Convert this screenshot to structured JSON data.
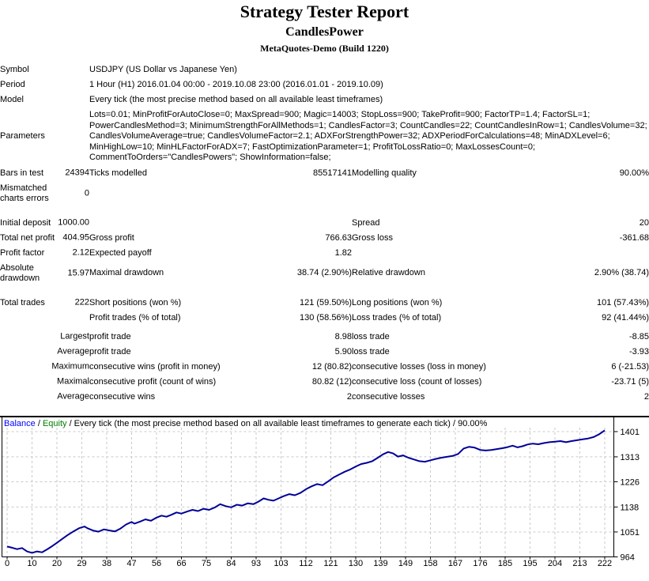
{
  "header": {
    "title": "Strategy Tester Report",
    "strategy": "CandlesPower",
    "server": "MetaQuotes-Demo (Build 1220)"
  },
  "info": {
    "symbol_label": "Symbol",
    "symbol": "USDJPY (US Dollar vs Japanese Yen)",
    "period_label": "Period",
    "period": "1 Hour (H1) 2016.01.04 00:00 - 2019.10.08 23:00 (2016.01.01 - 2019.10.09)",
    "model_label": "Model",
    "model": "Every tick (the most precise method based on all available least timeframes)",
    "parameters_label": "Parameters",
    "parameters": "Lots=0.01; MinProfitForAutoClose=0; MaxSpread=900; Magic=14003; StopLoss=900; TakeProfit=900; FactorTP=1.4; FactorSL=1; PowerCandlesMethod=3; MinimumStrengthForAllMethods=1; CandlesFactor=3; CountCandles=22; CountCandlesInRow=1; CandlesVolume=32; CandlesVolumeAverage=true; CandlesVolumeFactor=2.1; ADXForStrengthPower=32; ADXPeriodForCalculations=48; MinADXLevel=6; MinHighLow=10; MinHLFactorForADX=7; FastOptimizationParameter=1; ProfitToLossRatio=0; MaxLossesCount=0; CommentToOrders=\"CandlesPowers\"; ShowInformation=false;"
  },
  "stats": {
    "rows": [
      {
        "gap": 0,
        "c1": "Bars in test",
        "c2": "24394",
        "c3": "Ticks modelled",
        "c4": "85517141",
        "c5": "Modelling quality",
        "c6": "90.00%"
      },
      {
        "gap": 0,
        "c1": "Mismatched charts errors",
        "c2": "0",
        "c3": "",
        "c4": "",
        "c5": "",
        "c6": ""
      },
      {
        "gap": 12,
        "c1": "Initial deposit",
        "c2": "1000.00",
        "c3": "",
        "c4": "",
        "c5": "Spread",
        "c6": "20"
      },
      {
        "gap": 0,
        "c1": "Total net profit",
        "c2": "404.95",
        "c3": "Gross profit",
        "c4": "766.63",
        "c5": "Gross loss",
        "c6": "-361.68"
      },
      {
        "gap": 0,
        "c1": "Profit factor",
        "c2": "2.12",
        "c3": "Expected payoff",
        "c4": "1.82",
        "c5": "",
        "c6": ""
      },
      {
        "gap": 0,
        "c1": "Absolute drawdown",
        "c2": "15.97",
        "c3": "Maximal drawdown",
        "c4": "38.74 (2.90%)",
        "c5": "Relative drawdown",
        "c6": "2.90% (38.74)"
      },
      {
        "gap": 12,
        "c1": "Total trades",
        "c2": "222",
        "c3": "Short positions (won %)",
        "c4": "121 (59.50%)",
        "c5": "Long positions (won %)",
        "c6": "101 (57.43%)"
      },
      {
        "gap": 0,
        "c1": "",
        "c2": "",
        "c3": "Profit trades (% of total)",
        "c4": "130 (58.56%)",
        "c5": "Loss trades (% of total)",
        "c6": "92 (41.44%)"
      },
      {
        "gap": 5,
        "c1": "",
        "c2": "Largest",
        "c3": "profit trade",
        "c4": "8.98",
        "c5": "loss trade",
        "c6": "-8.85"
      },
      {
        "gap": 0,
        "c1": "",
        "c2": "Average",
        "c3": "profit trade",
        "c4": "5.90",
        "c5": "loss trade",
        "c6": "-3.93"
      },
      {
        "gap": 0,
        "c1": "",
        "c2": "Maximum",
        "c3": "consecutive wins (profit in money)",
        "c4": "12 (80.82)",
        "c5": "consecutive losses (loss in money)",
        "c6": "6 (-21.53)"
      },
      {
        "gap": 0,
        "c1": "",
        "c2": "Maximal",
        "c3": "consecutive profit (count of wins)",
        "c4": "80.82 (12)",
        "c5": "consecutive loss (count of losses)",
        "c6": "-23.71 (5)"
      },
      {
        "gap": 0,
        "c1": "",
        "c2": "Average",
        "c3": "consecutive wins",
        "c4": "2",
        "c5": "consecutive losses",
        "c6": "2"
      }
    ]
  },
  "chart_data": {
    "type": "line",
    "title": "Balance / Equity / Every tick (the most precise method based on all available least timeframes to generate each tick) / 90.00%",
    "legend_parts": [
      {
        "text": "Balance",
        "color": "#0000ff"
      },
      {
        "text": " / ",
        "color": "#000000"
      },
      {
        "text": "Equity",
        "color": "#008000"
      },
      {
        "text": " / Every tick (the most precise method based on all available least timeframes to generate each tick) / 90.00%",
        "color": "#000000"
      }
    ],
    "line_color": "#000098",
    "grid_color": "#c9c9c9",
    "xlabel": "",
    "ylabel": "",
    "xlim": [
      0,
      222
    ],
    "ylim": [
      964,
      1401
    ],
    "grid": true,
    "xticks": [
      0,
      10,
      20,
      29,
      38,
      47,
      56,
      66,
      75,
      84,
      93,
      103,
      112,
      121,
      130,
      139,
      149,
      158,
      167,
      176,
      185,
      195,
      204,
      213,
      222
    ],
    "yticks": [
      1401,
      1313,
      1226,
      1138,
      1051,
      964
    ],
    "series": [
      {
        "name": "Balance",
        "points": [
          [
            0,
            1000
          ],
          [
            2,
            996
          ],
          [
            4,
            991
          ],
          [
            6,
            995
          ],
          [
            8,
            983
          ],
          [
            10,
            978
          ],
          [
            12,
            983
          ],
          [
            14,
            980
          ],
          [
            16,
            990
          ],
          [
            18,
            1001
          ],
          [
            20,
            1013
          ],
          [
            22,
            1027
          ],
          [
            24,
            1041
          ],
          [
            26,
            1053
          ],
          [
            28,
            1064
          ],
          [
            30,
            1070
          ],
          [
            31,
            1064
          ],
          [
            33,
            1056
          ],
          [
            35,
            1052
          ],
          [
            37,
            1060
          ],
          [
            39,
            1056
          ],
          [
            41,
            1053
          ],
          [
            43,
            1063
          ],
          [
            45,
            1077
          ],
          [
            47,
            1086
          ],
          [
            48,
            1080
          ],
          [
            50,
            1087
          ],
          [
            52,
            1095
          ],
          [
            54,
            1090
          ],
          [
            56,
            1101
          ],
          [
            58,
            1108
          ],
          [
            60,
            1104
          ],
          [
            62,
            1111
          ],
          [
            64,
            1119
          ],
          [
            66,
            1115
          ],
          [
            68,
            1122
          ],
          [
            70,
            1128
          ],
          [
            72,
            1124
          ],
          [
            74,
            1132
          ],
          [
            76,
            1128
          ],
          [
            78,
            1136
          ],
          [
            80,
            1148
          ],
          [
            82,
            1141
          ],
          [
            84,
            1137
          ],
          [
            86,
            1146
          ],
          [
            88,
            1143
          ],
          [
            90,
            1151
          ],
          [
            92,
            1148
          ],
          [
            94,
            1157
          ],
          [
            96,
            1168
          ],
          [
            98,
            1163
          ],
          [
            100,
            1160
          ],
          [
            102,
            1168
          ],
          [
            104,
            1176
          ],
          [
            106,
            1183
          ],
          [
            108,
            1179
          ],
          [
            110,
            1187
          ],
          [
            112,
            1200
          ],
          [
            114,
            1210
          ],
          [
            116,
            1218
          ],
          [
            118,
            1214
          ],
          [
            120,
            1227
          ],
          [
            122,
            1241
          ],
          [
            124,
            1251
          ],
          [
            126,
            1261
          ],
          [
            128,
            1269
          ],
          [
            130,
            1279
          ],
          [
            132,
            1288
          ],
          [
            134,
            1292
          ],
          [
            136,
            1298
          ],
          [
            138,
            1310
          ],
          [
            140,
            1322
          ],
          [
            142,
            1330
          ],
          [
            144,
            1325
          ],
          [
            146,
            1314
          ],
          [
            148,
            1318
          ],
          [
            150,
            1310
          ],
          [
            152,
            1304
          ],
          [
            154,
            1298
          ],
          [
            156,
            1296
          ],
          [
            158,
            1301
          ],
          [
            160,
            1306
          ],
          [
            162,
            1310
          ],
          [
            164,
            1313
          ],
          [
            166,
            1316
          ],
          [
            168,
            1323
          ],
          [
            170,
            1342
          ],
          [
            172,
            1348
          ],
          [
            174,
            1345
          ],
          [
            176,
            1337
          ],
          [
            178,
            1335
          ],
          [
            180,
            1337
          ],
          [
            182,
            1340
          ],
          [
            184,
            1343
          ],
          [
            186,
            1347
          ],
          [
            188,
            1352
          ],
          [
            190,
            1346
          ],
          [
            192,
            1350
          ],
          [
            194,
            1356
          ],
          [
            196,
            1359
          ],
          [
            198,
            1357
          ],
          [
            200,
            1361
          ],
          [
            202,
            1364
          ],
          [
            204,
            1366
          ],
          [
            206,
            1368
          ],
          [
            208,
            1364
          ],
          [
            210,
            1368
          ],
          [
            212,
            1371
          ],
          [
            214,
            1374
          ],
          [
            216,
            1377
          ],
          [
            218,
            1382
          ],
          [
            220,
            1392
          ],
          [
            222,
            1405
          ]
        ]
      }
    ]
  }
}
